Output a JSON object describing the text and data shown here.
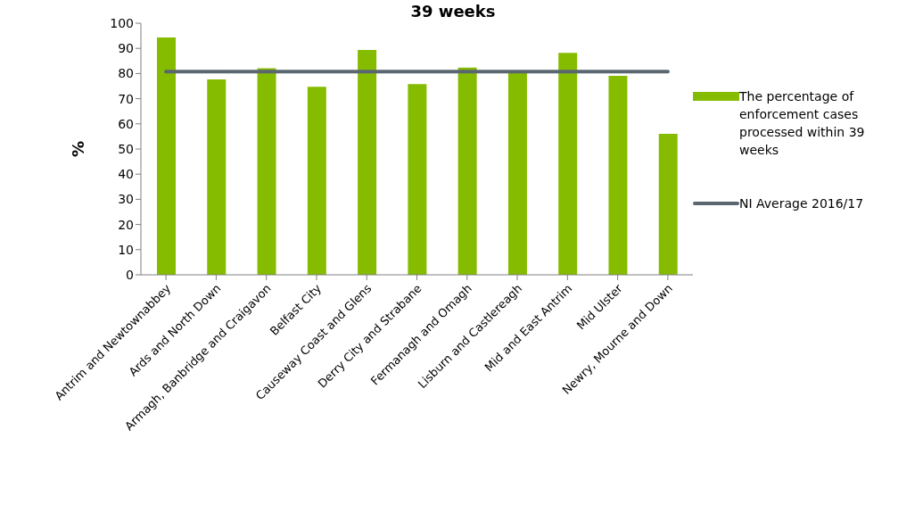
{
  "chart_data": {
    "type": "bar",
    "title": "39 weeks",
    "ylabel": "%",
    "categories": [
      "Antrim and Newtownabbey",
      "Ards and North Down",
      "Armagh, Banbridge and Craigavon",
      "Belfast City",
      "Causeway Coast and Glens",
      "Derry City and Strabane",
      "Fermanagh and Omagh",
      "Lisburn and Castlereagh",
      "Mid and East Antrim",
      "Mid Ulster",
      "Newry, Mourne and Down"
    ],
    "series": [
      {
        "name": "The percentage of enforcement cases processed within 39 weeks",
        "color": "#86bc00",
        "values": [
          94.3,
          77.7,
          82.1,
          74.7,
          89.4,
          75.8,
          82.4,
          80.8,
          88.2,
          79.1,
          56.0
        ]
      },
      {
        "name": "NI Average 2016/17",
        "type": "line",
        "color": "#5a6670",
        "values": [
          80.8,
          80.8,
          80.8,
          80.8,
          80.8,
          80.8,
          80.8,
          80.8,
          80.8,
          80.8,
          80.8
        ]
      }
    ],
    "ylim": [
      0,
      100
    ],
    "yticks": [
      0,
      10,
      20,
      30,
      40,
      50,
      60,
      70,
      80,
      90,
      100
    ],
    "grid": false,
    "legend": "right",
    "marker": "none",
    "line_style": "solid"
  }
}
